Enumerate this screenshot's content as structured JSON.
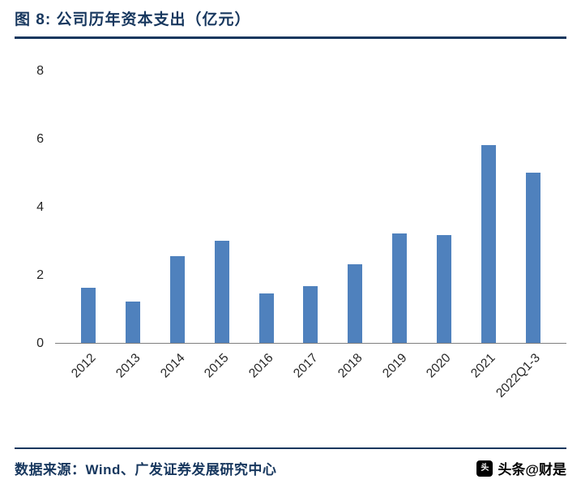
{
  "page": {
    "title": "图 8:  公司历年资本支出（亿元）",
    "source": "数据来源：Wind、广发证券发展研究中心",
    "watermark": "头条@财是",
    "watermark_icon_glyph": "头"
  },
  "colors": {
    "accent_navy": "#17375E",
    "bar_blue": "#4F81BD",
    "axis_gray": "#7F7F7F",
    "text_dark": "#262626"
  },
  "chart_data": {
    "type": "bar",
    "title": "公司历年资本支出（亿元）",
    "categories": [
      "2012",
      "2013",
      "2014",
      "2015",
      "2016",
      "2017",
      "2018",
      "2019",
      "2020",
      "2021",
      "2022Q1-3"
    ],
    "values": [
      1.6,
      1.2,
      2.55,
      3.0,
      1.45,
      1.65,
      2.3,
      3.2,
      3.15,
      5.8,
      5.0
    ],
    "xlabel": "",
    "ylabel": "",
    "ylim": [
      0,
      8
    ],
    "yticks": [
      0,
      2,
      4,
      6,
      8
    ],
    "grid": false,
    "legend": "none",
    "bar_color": "#4F81BD"
  }
}
